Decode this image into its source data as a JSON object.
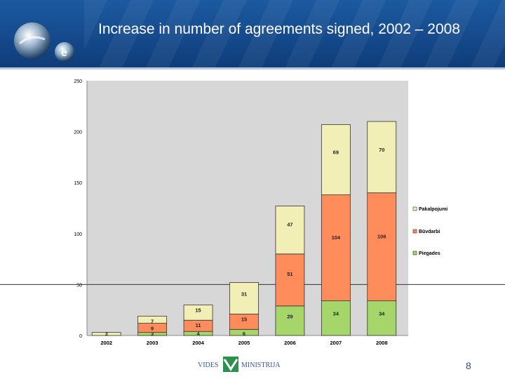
{
  "slide": {
    "title": "Increase in number of agreements signed, 2002 – 2008",
    "page_number": "8",
    "footer_logo": {
      "left_word": "VIDES",
      "right_word": "MINISTRIJA"
    }
  },
  "colors": {
    "series_Piegades": "#a6d66a",
    "series_Sovdarbi": "#ff8c5a",
    "series_Pakalpojumi": "#f2efb6",
    "plot_bg": "#d7d7d7",
    "header": "#174e93"
  },
  "chart_data": {
    "type": "bar",
    "stacked": true,
    "title": "",
    "xlabel": "",
    "ylabel": "",
    "categories": [
      "2002",
      "2003",
      "2004",
      "2005",
      "2006",
      "2007",
      "2008"
    ],
    "ylim": [
      0,
      250
    ],
    "yticks": [
      "0",
      "50",
      "100",
      "150",
      "200",
      "250"
    ],
    "legend_position": "right",
    "series": [
      {
        "name": "Piegades",
        "values": [
          0,
          3,
          4,
          6,
          29,
          34,
          34
        ],
        "labels": [
          "",
          "3",
          "4",
          "6",
          "29",
          "34",
          "34"
        ]
      },
      {
        "name": "Būvdarbi",
        "values": [
          0,
          9,
          11,
          15,
          51,
          104,
          106
        ],
        "labels": [
          "",
          "9",
          "11",
          "15",
          "51",
          "104",
          "106"
        ]
      },
      {
        "name": "Pakalpojumi",
        "values": [
          3,
          7,
          15,
          31,
          47,
          69,
          70
        ],
        "labels": [
          "3",
          "7",
          "15",
          "31",
          "47",
          "69",
          "70"
        ]
      }
    ],
    "legend_order": [
      "Pakalpojumi",
      "Būvdarbi",
      "Piegades"
    ]
  }
}
